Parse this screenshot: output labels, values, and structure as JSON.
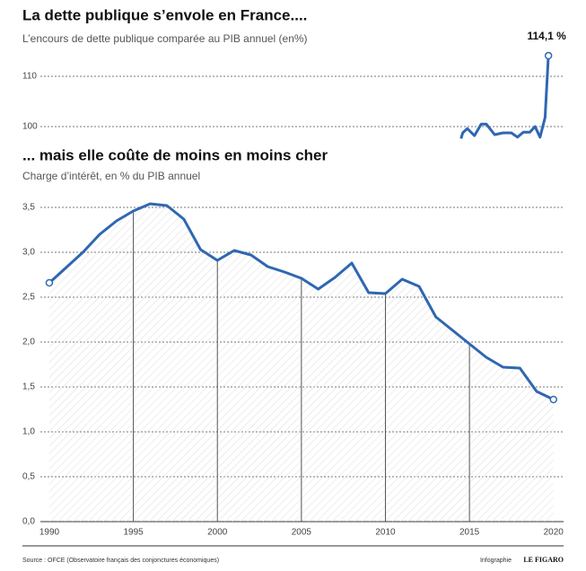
{
  "chart_data": [
    {
      "type": "line",
      "title": "La dette publique s’envole en France....",
      "subtitle": "L’encours de dette publique comparée au PIB annuel (en%)",
      "x": [
        2014.5,
        2014.6,
        2014.87,
        2015.3,
        2015.7,
        2016.0,
        2016.5,
        2017.0,
        2017.5,
        2017.86,
        2018.2,
        2018.6,
        2018.9,
        2019.2,
        2019.5,
        2019.7
      ],
      "series": [
        {
          "color": "#2f67b1",
          "values": [
            97.6,
            98.75,
            99.6,
            98.2,
            100.5,
            100.5,
            98.4,
            98.75,
            98.75,
            97.9,
            98.9,
            98.9,
            100.0,
            97.9,
            101.8,
            114.1
          ],
          "value_labels": [
            null,
            null,
            null,
            null,
            null,
            null,
            null,
            null,
            null,
            null,
            null,
            null,
            null,
            null,
            null,
            "114,1 %"
          ]
        }
      ],
      "xlim": [
        1988.4,
        2020.6
      ],
      "ylim": [
        97.5,
        116
      ],
      "yticks": [
        100,
        110
      ],
      "grid": true
    },
    {
      "type": "line",
      "title": "... mais elle coûte de moins en moins cher",
      "subtitle": "Charge d’intérêt, en % du PIB annuel",
      "x": [
        1990,
        1991,
        1992,
        1993,
        1994,
        1995,
        1996,
        1997,
        1998,
        1999,
        2000,
        2001,
        2002,
        2003,
        2004,
        2005,
        2006,
        2007,
        2008,
        2009,
        2010,
        2011,
        2012,
        2013,
        2014,
        2015,
        2016,
        2017,
        2018,
        2019,
        2020
      ],
      "series": [
        {
          "color": "#2f67b1",
          "values": [
            2.66,
            2.83,
            3.0,
            3.2,
            3.35,
            3.46,
            3.54,
            3.52,
            3.37,
            3.03,
            2.91,
            3.02,
            2.97,
            2.84,
            2.78,
            2.71,
            2.59,
            2.72,
            2.88,
            2.55,
            2.54,
            2.7,
            2.62,
            2.28,
            2.13,
            1.98,
            1.83,
            1.72,
            1.71,
            1.45,
            1.36
          ]
        }
      ],
      "xlim": [
        1988.4,
        2020.6
      ],
      "xticks": [
        1990,
        1995,
        2000,
        2005,
        2010,
        2015,
        2020
      ],
      "ylim": [
        0,
        3.6
      ],
      "yticks": [
        {
          "value": 0,
          "label": "0,0"
        },
        {
          "value": 0.5,
          "label": "0,5"
        },
        {
          "value": 1,
          "label": "1,0"
        },
        {
          "value": 1.5,
          "label": "1,5"
        },
        {
          "value": 2,
          "label": "2,0"
        },
        {
          "value": 2.5,
          "label": "2,5"
        },
        {
          "value": 3,
          "label": "3,0"
        },
        {
          "value": 3.5,
          "label": "3,5"
        }
      ],
      "grid": true
    }
  ],
  "footer": {
    "source": "Source : OFCE (Observatoire français des conjonctures économiques)",
    "credit": "Infographie",
    "brand": "LE FIGARO"
  }
}
